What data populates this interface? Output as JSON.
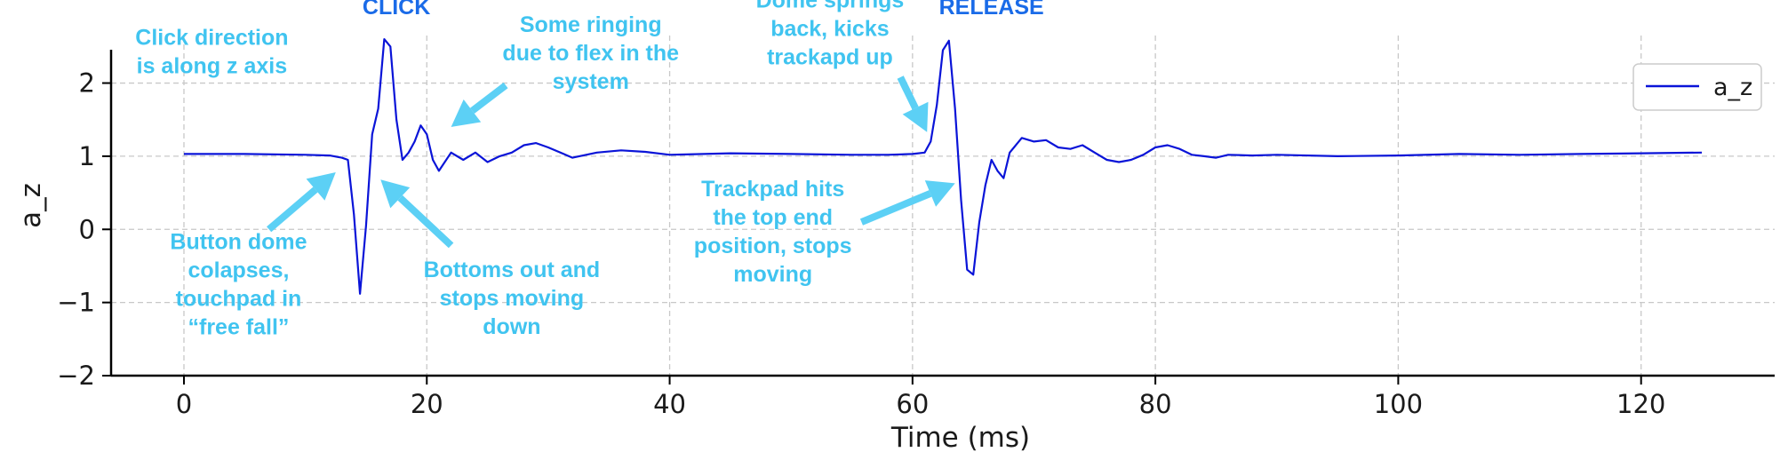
{
  "chart_data": {
    "type": "line",
    "xlabel": "Time (ms)",
    "ylabel": "a_z",
    "xlim": [
      -6,
      131
    ],
    "ylim": [
      -2,
      2.65
    ],
    "xticks": [
      0,
      20,
      40,
      60,
      80,
      100,
      120
    ],
    "yticks": [
      -2,
      -1,
      0,
      1,
      2
    ],
    "tick_labels_x": [
      "0",
      "20",
      "40",
      "60",
      "80",
      "100",
      "120"
    ],
    "tick_labels_y": [
      "−2",
      "−1",
      "0",
      "1",
      "2"
    ],
    "grid": true,
    "legend_position": "top-right",
    "series": [
      {
        "name": "a_z",
        "color": "#0a14d8",
        "x": [
          0,
          5,
          10,
          12,
          13,
          13.5,
          14,
          14.5,
          15,
          15.5,
          16,
          16.5,
          17,
          17.5,
          18,
          18.5,
          19,
          19.5,
          20,
          20.5,
          21,
          22,
          23,
          24,
          25,
          26,
          27,
          28,
          29,
          30,
          32,
          34,
          36,
          38,
          40,
          45,
          50,
          55,
          58,
          60,
          61,
          61.5,
          62,
          62.5,
          63,
          63.5,
          64,
          64.5,
          65,
          65.5,
          66,
          66.5,
          67,
          67.5,
          68,
          69,
          70,
          71,
          72,
          73,
          74,
          75,
          76,
          77,
          78,
          79,
          80,
          81,
          82,
          83,
          84,
          85,
          86,
          88,
          90,
          95,
          100,
          105,
          110,
          115,
          120,
          125
        ],
        "values": [
          1.03,
          1.03,
          1.02,
          1.01,
          0.98,
          0.95,
          0.2,
          -0.88,
          0.05,
          1.3,
          1.65,
          2.6,
          2.5,
          1.5,
          0.95,
          1.05,
          1.2,
          1.42,
          1.3,
          0.95,
          0.8,
          1.05,
          0.95,
          1.05,
          0.92,
          1.0,
          1.05,
          1.15,
          1.18,
          1.12,
          0.98,
          1.05,
          1.08,
          1.06,
          1.02,
          1.04,
          1.03,
          1.02,
          1.02,
          1.03,
          1.05,
          1.2,
          1.7,
          2.45,
          2.58,
          1.65,
          0.4,
          -0.55,
          -0.62,
          0.1,
          0.6,
          0.95,
          0.8,
          0.7,
          1.05,
          1.25,
          1.2,
          1.22,
          1.12,
          1.1,
          1.15,
          1.05,
          0.95,
          0.92,
          0.95,
          1.02,
          1.12,
          1.15,
          1.1,
          1.02,
          1.0,
          0.98,
          1.02,
          1.01,
          1.02,
          1.0,
          1.01,
          1.03,
          1.02,
          1.03,
          1.04,
          1.05
        ]
      }
    ],
    "phase_labels": [
      {
        "text": "CLICK",
        "x": 17.5,
        "y": 2.94
      },
      {
        "text": "RELEASE",
        "x": 66.5,
        "y": 2.94
      }
    ],
    "annotations": [
      {
        "lines": [
          "Click direction",
          "is along z axis"
        ],
        "x": 2.3,
        "y": 2.52
      },
      {
        "lines": [
          "Some ringing",
          "due to flex in the",
          "system"
        ],
        "x": 33.5,
        "y": 2.7
      },
      {
        "lines": [
          "Dome springs",
          "back, kicks",
          "trackapd up"
        ],
        "x": 53.2,
        "y": 3.03
      },
      {
        "lines": [
          "Button dome",
          "colapses,",
          "touchpad in",
          "“free fall”"
        ],
        "x": 4.5,
        "y": -0.27
      },
      {
        "lines": [
          "Bottoms out and",
          "stops moving",
          "down"
        ],
        "x": 27,
        "y": -0.65
      },
      {
        "lines": [
          "Trackpad hits",
          "the top end",
          "position, stops",
          "moving"
        ],
        "x": 48.5,
        "y": 0.45
      }
    ],
    "arrows": [
      {
        "from": [
          26.5,
          1.97
        ],
        "to": [
          22,
          1.4
        ]
      },
      {
        "from": [
          59,
          2.08
        ],
        "to": [
          61.2,
          1.33
        ]
      },
      {
        "from": [
          7,
          0.0
        ],
        "to": [
          12.5,
          0.78
        ]
      },
      {
        "from": [
          22,
          -0.22
        ],
        "to": [
          16.2,
          0.68
        ]
      },
      {
        "from": [
          55.8,
          0.1
        ],
        "to": [
          63.5,
          0.63
        ]
      }
    ]
  }
}
